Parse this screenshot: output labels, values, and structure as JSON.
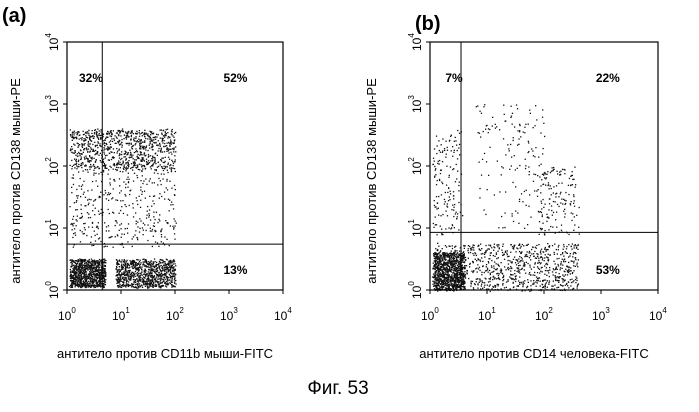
{
  "figure_caption": "Фиг. 53",
  "chart_data": [
    {
      "type": "scatter",
      "panel_label": "(a)",
      "xlabel": "антитело против CD11b мыши-FITC",
      "ylabel": "антитело против CD138 мыши-PE",
      "x_scale": "log",
      "y_scale": "log",
      "xlim": [
        1,
        10000
      ],
      "ylim": [
        1,
        10000
      ],
      "x_ticks": [
        {
          "base": "10",
          "exp": "0",
          "value": 1
        },
        {
          "base": "10",
          "exp": "1",
          "value": 10
        },
        {
          "base": "10",
          "exp": "2",
          "value": 100
        },
        {
          "base": "10",
          "exp": "3",
          "value": 1000
        },
        {
          "base": "10",
          "exp": "4",
          "value": 10000
        }
      ],
      "y_ticks": [
        {
          "base": "10",
          "exp": "0",
          "value": 1
        },
        {
          "base": "10",
          "exp": "1",
          "value": 10
        },
        {
          "base": "10",
          "exp": "2",
          "value": 100
        },
        {
          "base": "10",
          "exp": "3",
          "value": 1000
        },
        {
          "base": "10",
          "exp": "4",
          "value": 10000
        }
      ],
      "gate": {
        "x": 4.5,
        "y": 5.5
      },
      "quadrants": [
        {
          "position": "upper-left",
          "label": "32%",
          "value": 32
        },
        {
          "position": "upper-right",
          "label": "52%",
          "value": 52
        },
        {
          "position": "lower-right",
          "label": "13%",
          "value": 13
        }
      ],
      "clusters": [
        {
          "x_log": [
            0.05,
            2.0
          ],
          "y_log": [
            1.95,
            2.6
          ],
          "density": "high"
        },
        {
          "x_log": [
            0.05,
            2.0
          ],
          "y_log": [
            0.7,
            1.95
          ],
          "density": "medium"
        },
        {
          "x_log": [
            0.05,
            0.7
          ],
          "y_log": [
            0.05,
            0.5
          ],
          "density": "high"
        },
        {
          "x_log": [
            0.9,
            2.0
          ],
          "y_log": [
            0.05,
            0.5
          ],
          "density": "high"
        }
      ]
    },
    {
      "type": "scatter",
      "panel_label": "(b)",
      "xlabel": "антитело против CD14 человека-FITC",
      "ylabel": "антитело против CD138 мыши-PE",
      "x_scale": "log",
      "y_scale": "log",
      "xlim": [
        1,
        10000
      ],
      "ylim": [
        1,
        10000
      ],
      "x_ticks": [
        {
          "base": "10",
          "exp": "0",
          "value": 1
        },
        {
          "base": "10",
          "exp": "1",
          "value": 10
        },
        {
          "base": "10",
          "exp": "2",
          "value": 100
        },
        {
          "base": "10",
          "exp": "3",
          "value": 1000
        },
        {
          "base": "10",
          "exp": "4",
          "value": 10000
        }
      ],
      "y_ticks": [
        {
          "base": "10",
          "exp": "0",
          "value": 1
        },
        {
          "base": "10",
          "exp": "1",
          "value": 10
        },
        {
          "base": "10",
          "exp": "2",
          "value": 100
        },
        {
          "base": "10",
          "exp": "3",
          "value": 1000
        },
        {
          "base": "10",
          "exp": "4",
          "value": 10000
        }
      ],
      "gate": {
        "x": 3.5,
        "y": 8.5
      },
      "quadrants": [
        {
          "position": "upper-left",
          "label": "7%",
          "value": 7
        },
        {
          "position": "upper-right",
          "label": "22%",
          "value": 22
        },
        {
          "position": "lower-right",
          "label": "53%",
          "value": 53
        }
      ],
      "clusters": [
        {
          "x_log": [
            0.05,
            2.6
          ],
          "y_log": [
            0.0,
            0.75
          ],
          "density": "high"
        },
        {
          "x_log": [
            0.05,
            0.6
          ],
          "y_log": [
            0.0,
            0.6
          ],
          "density": "high"
        },
        {
          "x_log": [
            0.05,
            0.55
          ],
          "y_log": [
            0.9,
            2.6
          ],
          "density": "low"
        },
        {
          "x_log": [
            0.8,
            2.0
          ],
          "y_log": [
            1.0,
            3.0
          ],
          "density": "low"
        },
        {
          "x_log": [
            1.9,
            2.6
          ],
          "y_log": [
            0.9,
            2.0
          ],
          "density": "low"
        }
      ]
    }
  ]
}
